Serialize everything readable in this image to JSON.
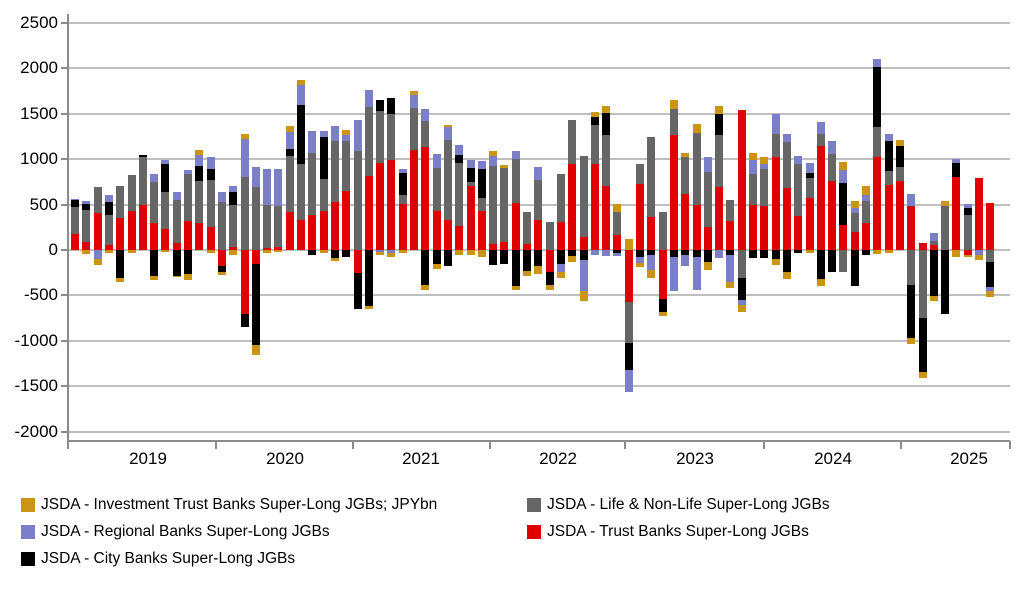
{
  "chart_data": {
    "type": "bar",
    "stacked": true,
    "unit": "JPYbn",
    "title": "",
    "xlabel": "",
    "ylabel": "",
    "ylim": [
      -2000,
      2500
    ],
    "ytick_step": 500,
    "grid": true,
    "legend_position": "bottom",
    "year_labels": [
      "2019",
      "2020",
      "2021",
      "2022",
      "2023",
      "2024",
      "2025"
    ],
    "categories": [
      "2018-12",
      "2019-01",
      "2019-02",
      "2019-03",
      "2019-04",
      "2019-05",
      "2019-06",
      "2019-07",
      "2019-08",
      "2019-09",
      "2019-10",
      "2019-11",
      "2019-12",
      "2020-01",
      "2020-02",
      "2020-03",
      "2020-04",
      "2020-05",
      "2020-06",
      "2020-07",
      "2020-08",
      "2020-09",
      "2020-10",
      "2020-11",
      "2020-12",
      "2021-01",
      "2021-02",
      "2021-03",
      "2021-04",
      "2021-05",
      "2021-06",
      "2021-07",
      "2021-08",
      "2021-09",
      "2021-10",
      "2021-11",
      "2021-12",
      "2022-01",
      "2022-02",
      "2022-03",
      "2022-04",
      "2022-05",
      "2022-06",
      "2022-07",
      "2022-08",
      "2022-09",
      "2022-10",
      "2022-11",
      "2022-12",
      "2023-01",
      "2023-02",
      "2023-03",
      "2023-04",
      "2023-05",
      "2023-06",
      "2023-07",
      "2023-08",
      "2023-09",
      "2023-10",
      "2023-11",
      "2023-12",
      "2024-01",
      "2024-02",
      "2024-03",
      "2024-04",
      "2024-05",
      "2024-06",
      "2024-07",
      "2024-08",
      "2024-09",
      "2024-10",
      "2024-11",
      "2024-12",
      "2025-01",
      "2025-02",
      "2025-03",
      "2025-04",
      "2025-05",
      "2025-06",
      "2025-07",
      "2025-08",
      "2025-09"
    ],
    "stack_order": [
      "trust",
      "life",
      "city",
      "regional",
      "inv_trust"
    ],
    "series": [
      {
        "id": "inv_trust",
        "name": "JSDA - Investment Trust Banks Super-Long JGBs; JPYbn",
        "color": "#CB9414",
        "values": [
          0,
          -40,
          -70,
          -30,
          -40,
          -30,
          0,
          -40,
          -25,
          -10,
          -65,
          50,
          -30,
          -30,
          -50,
          60,
          -110,
          -30,
          -20,
          60,
          50,
          0,
          -30,
          -30,
          60,
          0,
          -30,
          -40,
          -45,
          -30,
          50,
          -60,
          -60,
          30,
          -60,
          -60,
          -80,
          55,
          35,
          -45,
          -55,
          -80,
          -60,
          -60,
          -65,
          -110,
          60,
          75,
          90,
          120,
          -45,
          -80,
          -50,
          95,
          40,
          105,
          -80,
          80,
          -70,
          -70,
          75,
          75,
          -65,
          -75,
          0,
          -30,
          -85,
          0,
          90,
          75,
          90,
          -45,
          -35,
          60,
          -70,
          -70,
          -55,
          60,
          -80,
          -25,
          -55,
          -60
        ]
      },
      {
        "id": "life",
        "name": "JSDA - Life & Non-Life Super-Long JGBs",
        "color": "#666666",
        "values": [
          295,
          345,
          280,
          320,
          350,
          390,
          530,
          450,
          405,
          465,
          515,
          460,
          510,
          530,
          470,
          800,
          690,
          470,
          450,
          620,
          620,
          685,
          350,
          675,
          550,
          1090,
          760,
          570,
          510,
          90,
          460,
          290,
          480,
          880,
          700,
          50,
          140,
          860,
          815,
          480,
          355,
          445,
          310,
          530,
          490,
          890,
          430,
          560,
          255,
          -455,
          220,
          885,
          420,
          285,
          405,
          795,
          610,
          575,
          225,
          -310,
          350,
          410,
          260,
          500,
          575,
          220,
          130,
          295,
          -240,
          205,
          240,
          330,
          150,
          150,
          -385,
          -750,
          35,
          480,
          0,
          390,
          0,
          -130
        ]
      },
      {
        "id": "regional",
        "name": "JSDA - Regional Banks Super-Long JGBs",
        "color": "#7B7FC7",
        "values": [
          20,
          35,
          -100,
          80,
          0,
          0,
          0,
          90,
          40,
          90,
          50,
          120,
          135,
          110,
          60,
          420,
          225,
          400,
          410,
          190,
          215,
          240,
          70,
          165,
          65,
          340,
          190,
          -20,
          -35,
          50,
          140,
          135,
          150,
          140,
          120,
          90,
          90,
          105,
          0,
          85,
          0,
          140,
          0,
          -95,
          0,
          -340,
          -60,
          -65,
          -35,
          -235,
          -65,
          -170,
          0,
          -370,
          -130,
          -365,
          165,
          -85,
          -290,
          -60,
          150,
          55,
          220,
          90,
          90,
          110,
          130,
          145,
          140,
          55,
          75,
          85,
          75,
          0,
          135,
          0,
          95,
          0,
          45,
          40,
          -55,
          -45
        ]
      },
      {
        "id": "trust",
        "name": "JSDA - Trust Banks Super-Long JGBs",
        "color": "#E10000",
        "values": [
          175,
          90,
          410,
          60,
          350,
          430,
          490,
          300,
          230,
          80,
          320,
          300,
          255,
          -180,
          30,
          -700,
          -150,
          20,
          30,
          415,
          330,
          385,
          430,
          525,
          650,
          -250,
          815,
          960,
          990,
          510,
          1100,
          1130,
          425,
          330,
          260,
          700,
          430,
          65,
          85,
          520,
          65,
          330,
          -240,
          310,
          945,
          140,
          950,
          700,
          165,
          -570,
          730,
          360,
          -540,
          1265,
          620,
          490,
          250,
          690,
          320,
          1535,
          490,
          480,
          1020,
          685,
          370,
          575,
          1145,
          760,
          280,
          200,
          295,
          1020,
          720,
          760,
          480,
          75,
          60,
          0,
          800,
          -55,
          790,
          520
        ]
      },
      {
        "id": "city",
        "name": "JSDA - City Banks Super-Long JGBs",
        "color": "#000000",
        "values": [
          75,
          70,
          0,
          150,
          -310,
          0,
          30,
          -290,
          315,
          -290,
          -260,
          165,
          125,
          -60,
          140,
          -145,
          -900,
          0,
          0,
          75,
          650,
          -50,
          460,
          -90,
          -80,
          -400,
          -620,
          125,
          170,
          245,
          0,
          -385,
          -150,
          -180,
          80,
          150,
          320,
          -160,
          -150,
          -400,
          -235,
          -180,
          -145,
          -150,
          -65,
          -110,
          80,
          250,
          -30,
          -300,
          -75,
          -55,
          -140,
          -80,
          -50,
          -75,
          -135,
          235,
          -60,
          -240,
          -85,
          -85,
          -100,
          -240,
          -30,
          55,
          -315,
          -240,
          460,
          -400,
          -55,
          665,
          330,
          235,
          -580,
          -590,
          -510,
          -700,
          155,
          75,
          0,
          -280
        ]
      }
    ]
  },
  "legend": {
    "items": [
      {
        "series": "inv_trust"
      },
      {
        "series": "life"
      },
      {
        "series": "regional"
      },
      {
        "series": "trust"
      },
      {
        "series": "city"
      }
    ]
  }
}
